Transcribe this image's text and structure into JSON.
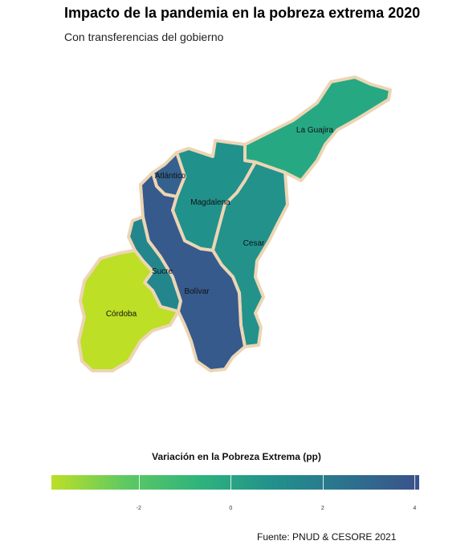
{
  "title": "Impacto de la pandemia en la pobreza extrema 2020",
  "subtitle": "Con transferencias del gobierno",
  "legend": {
    "title": "Variación en la Pobreza Extrema (pp)",
    "min": -3.9,
    "max": 4.1,
    "ticks": [
      {
        "value": -2,
        "label": "-2"
      },
      {
        "value": 0,
        "label": "0"
      },
      {
        "value": 2,
        "label": "2"
      },
      {
        "value": 4,
        "label": "4"
      }
    ],
    "colors": [
      "#bddf26",
      "#5ec962",
      "#2fb47c",
      "#21918c",
      "#2c728e",
      "#3b528b"
    ]
  },
  "regions": [
    {
      "id": "la-guajira",
      "label": "La Guajira",
      "value": 0.5,
      "color": "#26a983"
    },
    {
      "id": "atlantico",
      "label": "Atlántico",
      "value": 3.8,
      "color": "#34618d"
    },
    {
      "id": "magdalena",
      "label": "Magdalena",
      "value": 1.3,
      "color": "#21918c"
    },
    {
      "id": "cesar",
      "label": "Cesar",
      "value": 1.5,
      "color": "#22928b"
    },
    {
      "id": "sucre",
      "label": "Sucre",
      "value": 2.0,
      "color": "#23868d"
    },
    {
      "id": "bolivar",
      "label": "Bolívar",
      "value": 3.9,
      "color": "#365a8c"
    },
    {
      "id": "cordoba",
      "label": "Córdoba",
      "value": -3.9,
      "color": "#bddf26"
    }
  ],
  "source": "Fuente: PNUD & CESORE 2021"
}
